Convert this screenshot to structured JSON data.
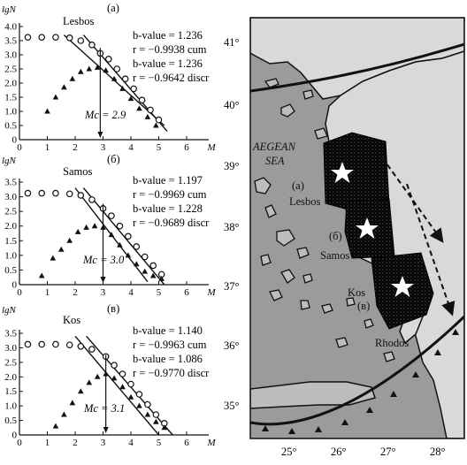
{
  "panels": [
    {
      "label": "(a)",
      "region": "Lesbos",
      "stats": [
        "b-value = 1.236",
        "r = −0.9938 cum",
        "b-value = 1.236",
        "r = −0.9642 discr"
      ],
      "mc": "Mc = 2.9",
      "yticks": [
        "0",
        "0.5",
        "1.0",
        "1.5",
        "2.0",
        "2.5",
        "3.0",
        "3.5",
        "4.0"
      ]
    },
    {
      "label": "(б)",
      "region": "Samos",
      "stats": [
        "b-value = 1.197",
        "r = −0.9969 cum",
        "b-value = 1.228",
        "r = −0.9689 discr"
      ],
      "mc": "Mc = 3.0",
      "yticks": [
        "0",
        "0.5",
        "1.0",
        "1.5",
        "2.0",
        "2.5",
        "3.0",
        "3.5"
      ]
    },
    {
      "label": "(в)",
      "region": "Kos",
      "stats": [
        "b-value = 1.140",
        "r = −0.9963 cum",
        "b-value = 1.086",
        "r = −0.9770 discr"
      ],
      "mc": "Mc = 3.1",
      "yticks": [
        "0",
        "0.5",
        "1.0",
        "1.5",
        "2.0",
        "2.5",
        "3.0",
        "3.5"
      ]
    }
  ],
  "axis": {
    "ylabel": "lgN",
    "xlabel": "M",
    "xticks": [
      "0",
      "1",
      "2",
      "3",
      "4",
      "5",
      "6"
    ]
  },
  "map": {
    "sea_label": [
      "AEGEAN",
      "SEA"
    ],
    "lat_labels": [
      "41°",
      "40°",
      "39°",
      "38°",
      "37°",
      "36°",
      "35°"
    ],
    "lon_labels": [
      "25°",
      "26°",
      "27°",
      "28°"
    ],
    "zones": [
      {
        "label": "(a)",
        "name": "Lesbos"
      },
      {
        "label": "(б)",
        "name": "Samos"
      },
      {
        "label": "(в)",
        "name": "Kos"
      }
    ],
    "rhodos": "Rhodos"
  },
  "colors": {
    "land": "#d9d9d9",
    "sea": "#9b9b9b",
    "ink": "#111111",
    "seismic": "#000000",
    "star": "#ffffff"
  },
  "chart_data": [
    {
      "type": "scatter",
      "title": "Lesbos",
      "xlabel": "M",
      "ylabel": "lgN",
      "xlim": [
        0,
        7
      ],
      "ylim": [
        0,
        4
      ],
      "series": [
        {
          "name": "cum",
          "marker": "circle",
          "x": [
            0.3,
            0.8,
            1.3,
            1.8,
            2.2,
            2.6,
            2.9,
            3.2,
            3.5,
            3.8,
            4.1,
            4.4,
            4.7,
            5.0
          ],
          "y": [
            3.62,
            3.62,
            3.62,
            3.6,
            3.5,
            3.35,
            3.05,
            2.85,
            2.5,
            2.15,
            1.8,
            1.4,
            1.05,
            0.7
          ]
        },
        {
          "name": "discr",
          "marker": "triangle",
          "x": [
            1.0,
            1.3,
            1.6,
            1.9,
            2.2,
            2.5,
            2.8,
            3.1,
            3.4,
            3.7,
            4.0,
            4.3,
            4.6,
            4.9
          ],
          "y": [
            1.0,
            1.5,
            1.85,
            2.15,
            2.4,
            2.5,
            2.55,
            2.45,
            2.15,
            1.8,
            1.45,
            1.1,
            0.8,
            0.5
          ]
        }
      ],
      "fit_lines": [
        {
          "x": [
            1.6,
            5.2
          ],
          "y": [
            3.7,
            0.5
          ]
        },
        {
          "x": [
            2.3,
            5.3
          ],
          "y": [
            3.7,
            0.3
          ]
        }
      ],
      "mc": 2.9
    },
    {
      "type": "scatter",
      "title": "Samos",
      "xlabel": "M",
      "ylabel": "lgN",
      "xlim": [
        0,
        7
      ],
      "ylim": [
        0,
        3.5
      ],
      "series": [
        {
          "name": "cum",
          "marker": "circle",
          "x": [
            0.3,
            0.8,
            1.3,
            1.8,
            2.2,
            2.6,
            3.0,
            3.3,
            3.6,
            3.9,
            4.2,
            4.5,
            4.8,
            5.1
          ],
          "y": [
            3.12,
            3.12,
            3.12,
            3.1,
            3.05,
            2.9,
            2.6,
            2.35,
            2.0,
            1.65,
            1.3,
            0.95,
            0.65,
            0.35
          ]
        },
        {
          "name": "discr",
          "marker": "triangle",
          "x": [
            0.8,
            1.2,
            1.5,
            1.8,
            2.1,
            2.4,
            2.7,
            3.0,
            3.3,
            3.6,
            3.9,
            4.2,
            4.5,
            4.8,
            5.1
          ],
          "y": [
            0.3,
            0.9,
            1.2,
            1.5,
            1.8,
            1.95,
            2.0,
            1.95,
            1.7,
            1.35,
            1.0,
            0.7,
            0.45,
            0.3,
            0.2
          ]
        }
      ],
      "fit_lines": [
        {
          "x": [
            2.0,
            4.6
          ],
          "y": [
            3.3,
            0.1
          ]
        },
        {
          "x": [
            2.3,
            5.2
          ],
          "y": [
            3.3,
            0.0
          ]
        }
      ],
      "mc": 3.0
    },
    {
      "type": "scatter",
      "title": "Kos",
      "xlabel": "M",
      "ylabel": "lgN",
      "xlim": [
        0,
        7
      ],
      "ylim": [
        0,
        3.5
      ],
      "series": [
        {
          "name": "cum",
          "marker": "circle",
          "x": [
            0.3,
            0.8,
            1.3,
            1.8,
            2.2,
            2.6,
            3.1,
            3.4,
            3.7,
            4.0,
            4.3,
            4.6,
            4.9,
            5.2
          ],
          "y": [
            3.12,
            3.12,
            3.12,
            3.1,
            3.05,
            2.95,
            2.7,
            2.4,
            2.1,
            1.75,
            1.4,
            1.05,
            0.7,
            0.4
          ]
        },
        {
          "name": "discr",
          "marker": "triangle",
          "x": [
            1.3,
            1.6,
            1.9,
            2.2,
            2.5,
            2.8,
            3.1,
            3.4,
            3.7,
            4.0,
            4.3,
            4.6,
            4.9,
            5.2
          ],
          "y": [
            0.3,
            0.7,
            1.1,
            1.5,
            1.8,
            2.0,
            2.1,
            1.95,
            1.65,
            1.3,
            1.0,
            0.7,
            0.45,
            0.25
          ]
        }
      ],
      "fit_lines": [
        {
          "x": [
            2.0,
            5.0
          ],
          "y": [
            3.4,
            0.0
          ]
        },
        {
          "x": [
            2.4,
            5.5
          ],
          "y": [
            3.4,
            0.0
          ]
        }
      ],
      "mc": 3.1
    }
  ]
}
